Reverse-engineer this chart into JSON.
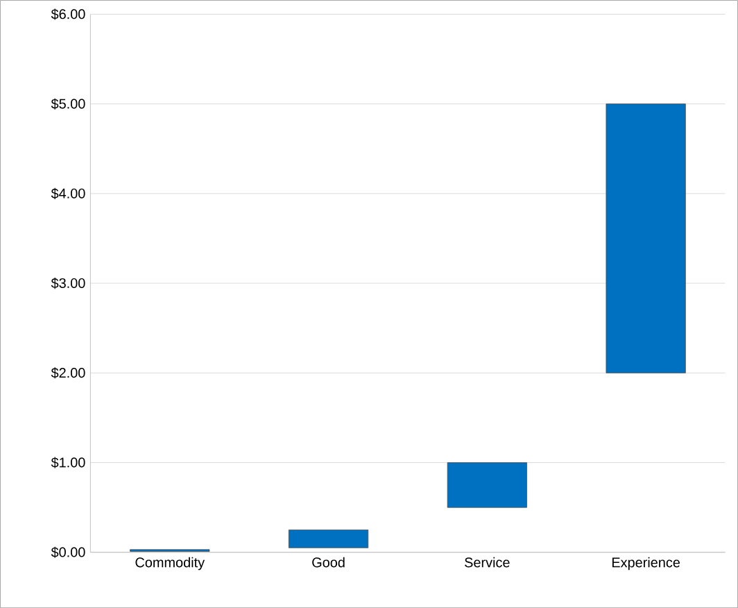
{
  "chart_data": {
    "type": "bar",
    "categories": [
      "Commodity",
      "Good",
      "Service",
      "Experience"
    ],
    "base": [
      0.01,
      0.05,
      0.5,
      2
    ],
    "values": [
      0.02,
      0.2,
      0.5,
      3
    ],
    "color": "#0070c0",
    "ylim": [
      0,
      6
    ],
    "yticks": [
      {
        "value": 0,
        "label": "$0.00"
      },
      {
        "value": 1,
        "label": "$1.00"
      },
      {
        "value": 2,
        "label": "$2.00"
      },
      {
        "value": 3,
        "label": "$3.00"
      },
      {
        "value": 4,
        "label": "$4.00"
      },
      {
        "value": 5,
        "label": "$5.00"
      },
      {
        "value": 6,
        "label": "$6.00"
      }
    ],
    "grid": "y"
  }
}
